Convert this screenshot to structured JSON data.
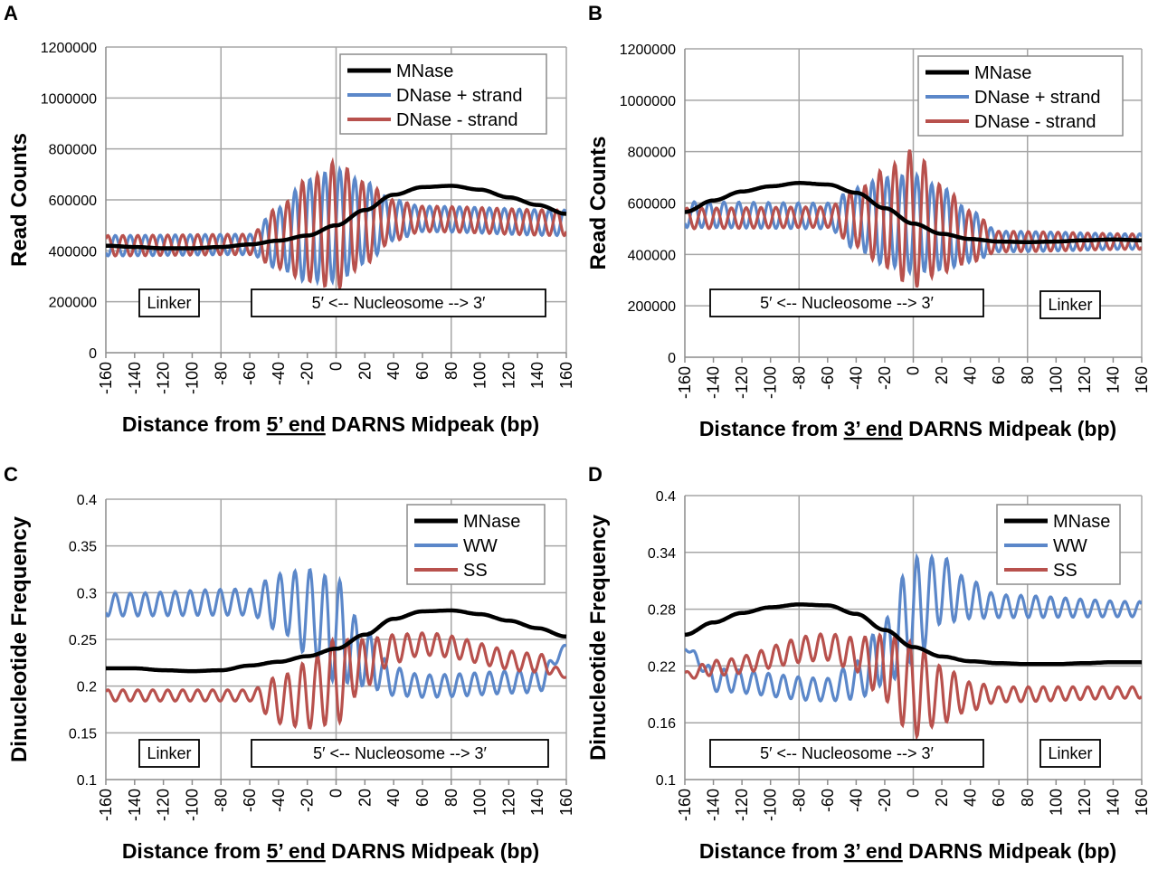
{
  "colors": {
    "mnase": "#000000",
    "dnase_plus": "#5b87c9",
    "dnase_minus": "#b8514d",
    "ww": "#5b87c9",
    "ss": "#b8514d",
    "grid": "#a6a6a6",
    "axis": "#8c8c8c"
  },
  "chart_data": [
    {
      "panel": "A",
      "type": "line",
      "ylabel": "Read Counts",
      "xlabel": {
        "pre": "Distance from ",
        "u": "5’ end",
        "post": " DARNS Midpeak (bp)"
      },
      "xlim": [
        -160,
        160
      ],
      "ylim": [
        0,
        1200000
      ],
      "xticks": [
        "-160",
        "-140",
        "-120",
        "-100",
        "-80",
        "-60",
        "-40",
        "-20",
        "0",
        "20",
        "40",
        "60",
        "80",
        "100",
        "120",
        "140",
        "160"
      ],
      "yticks": [
        "0",
        "200000",
        "400000",
        "600000",
        "800000",
        "1000000",
        "1200000"
      ],
      "legend": [
        "MNase",
        "DNase + strand",
        "DNase - strand"
      ],
      "boxes": [
        "Linker",
        "5′ <-- Nucleosome --> 3′"
      ],
      "mnase": {
        "x": [
          -160,
          -140,
          -120,
          -100,
          -80,
          -60,
          -40,
          -20,
          0,
          20,
          40,
          60,
          80,
          100,
          120,
          140,
          160
        ],
        "y": [
          420000,
          415000,
          410000,
          410000,
          415000,
          425000,
          440000,
          460000,
          500000,
          560000,
          620000,
          650000,
          655000,
          640000,
          610000,
          580000,
          545000
        ]
      },
      "dnase_plus": {
        "x": [
          -160,
          -60,
          -40,
          -20,
          0,
          20,
          40,
          60,
          160
        ],
        "amp": [
          40000,
          40000,
          120000,
          200000,
          220000,
          160000,
          80000,
          50000,
          50000
        ],
        "base": [
          420000,
          425000,
          450000,
          480000,
          500000,
          510000,
          520000,
          525000,
          510000
        ],
        "period": 10.4,
        "phase": 0
      },
      "dnase_minus": {
        "x": [
          -160,
          -60,
          -40,
          -20,
          0,
          20,
          40,
          60,
          160
        ],
        "amp": [
          40000,
          40000,
          120000,
          200000,
          250000,
          160000,
          80000,
          50000,
          50000
        ],
        "base": [
          420000,
          425000,
          450000,
          480000,
          500000,
          510000,
          520000,
          525000,
          510000
        ],
        "period": 10.4,
        "phase": 5.2
      }
    },
    {
      "panel": "B",
      "type": "line",
      "ylabel": "Read Counts",
      "xlabel": {
        "pre": "Distance from ",
        "u": "3’ end",
        "post": " DARNS Midpeak (bp)"
      },
      "xlim": [
        -160,
        160
      ],
      "ylim": [
        0,
        1200000
      ],
      "xticks": [
        "-160",
        "-140",
        "-120",
        "-100",
        "-80",
        "-60",
        "-40",
        "-20",
        "0",
        "20",
        "40",
        "60",
        "80",
        "100",
        "120",
        "140",
        "160"
      ],
      "yticks": [
        "0",
        "200000",
        "400000",
        "600000",
        "800000",
        "1000000",
        "1200000"
      ],
      "legend": [
        "MNase",
        "DNase + strand",
        "DNase - strand"
      ],
      "boxes": [
        "5′ <-- Nucleosome --> 3′",
        "Linker"
      ],
      "mnase": {
        "x": [
          -160,
          -140,
          -120,
          -100,
          -80,
          -60,
          -40,
          -20,
          0,
          20,
          40,
          60,
          80,
          100,
          120,
          140,
          160
        ],
        "y": [
          565000,
          610000,
          645000,
          665000,
          678000,
          672000,
          640000,
          580000,
          520000,
          480000,
          460000,
          450000,
          448000,
          450000,
          455000,
          458000,
          455000
        ]
      },
      "dnase_plus": {
        "x": [
          -160,
          -60,
          -40,
          -20,
          0,
          20,
          40,
          60,
          160
        ],
        "amp": [
          50000,
          50000,
          120000,
          170000,
          190000,
          160000,
          100000,
          40000,
          30000
        ],
        "base": [
          555000,
          550000,
          540000,
          530000,
          520000,
          500000,
          470000,
          450000,
          450000
        ],
        "period": 10.4,
        "phase": 0
      },
      "dnase_minus": {
        "x": [
          -160,
          -60,
          -40,
          -20,
          0,
          20,
          40,
          60,
          160
        ],
        "amp": [
          40000,
          40000,
          110000,
          190000,
          270000,
          170000,
          100000,
          40000,
          30000
        ],
        "base": [
          540000,
          545000,
          540000,
          540000,
          540000,
          500000,
          470000,
          450000,
          450000
        ],
        "period": 10.4,
        "phase": 5.2
      }
    },
    {
      "panel": "C",
      "type": "line",
      "ylabel": "Dinucleotide Frequency",
      "xlabel": {
        "pre": "Distance from ",
        "u": "5’ end",
        "post": " DARNS Midpeak (bp)"
      },
      "xlim": [
        -160,
        160
      ],
      "ylim": [
        0.1,
        0.4
      ],
      "xticks": [
        "-160",
        "-140",
        "-120",
        "-100",
        "-80",
        "-60",
        "-40",
        "-20",
        "0",
        "20",
        "40",
        "60",
        "80",
        "100",
        "120",
        "140",
        "160"
      ],
      "yticks": [
        "0.1",
        "0.15",
        "0.2",
        "0.25",
        "0.3",
        "0.35",
        "0.4"
      ],
      "legend": [
        "MNase",
        "WW",
        "SS"
      ],
      "boxes": [
        "Linker",
        "5′ <-- Nucleosome --> 3′"
      ],
      "mnase": {
        "x": [
          -160,
          -140,
          -120,
          -100,
          -80,
          -60,
          -40,
          -20,
          0,
          20,
          40,
          60,
          80,
          100,
          120,
          140,
          160
        ],
        "y": [
          0.219,
          0.219,
          0.217,
          0.216,
          0.217,
          0.222,
          0.226,
          0.232,
          0.24,
          0.255,
          0.272,
          0.28,
          0.281,
          0.277,
          0.27,
          0.262,
          0.253
        ]
      },
      "ww": {
        "x": [
          -160,
          -60,
          -40,
          -20,
          0,
          20,
          40,
          60,
          140,
          160
        ],
        "amp": [
          0.012,
          0.014,
          0.03,
          0.045,
          0.055,
          0.03,
          0.015,
          0.012,
          0.012,
          0.004
        ],
        "base": [
          0.287,
          0.29,
          0.29,
          0.28,
          0.26,
          0.23,
          0.205,
          0.2,
          0.205,
          0.24
        ],
        "period": 10.4,
        "phase": 0
      },
      "ss": {
        "x": [
          -160,
          -60,
          -40,
          -20,
          0,
          20,
          40,
          60,
          140,
          160
        ],
        "amp": [
          0.006,
          0.006,
          0.025,
          0.035,
          0.045,
          0.025,
          0.015,
          0.012,
          0.01,
          0.003
        ],
        "base": [
          0.19,
          0.19,
          0.185,
          0.19,
          0.205,
          0.225,
          0.24,
          0.245,
          0.225,
          0.212
        ],
        "period": 10.4,
        "phase": 5.2
      }
    },
    {
      "panel": "D",
      "type": "line",
      "ylabel": "Dinucleotide Frequency",
      "xlabel": {
        "pre": "Distance from ",
        "u": "3’ end",
        "post": " DARNS Midpeak (bp)"
      },
      "xlim": [
        -160,
        160
      ],
      "ylim": [
        0.1,
        0.4
      ],
      "xticks": [
        "-160",
        "-140",
        "-120",
        "-100",
        "-80",
        "-60",
        "-40",
        "-20",
        "0",
        "20",
        "40",
        "60",
        "80",
        "100",
        "120",
        "140",
        "160"
      ],
      "yticks": [
        "0.1",
        "0.16",
        "0.22",
        "0.28",
        "0.34",
        "0.4"
      ],
      "legend": [
        "MNase",
        "WW",
        "SS"
      ],
      "boxes": [
        "5′ <-- Nucleosome --> 3′",
        "Linker"
      ],
      "mnase": {
        "x": [
          -160,
          -140,
          -120,
          -100,
          -80,
          -60,
          -40,
          -20,
          0,
          20,
          40,
          60,
          80,
          100,
          120,
          140,
          160
        ],
        "y": [
          0.253,
          0.266,
          0.276,
          0.282,
          0.285,
          0.284,
          0.275,
          0.258,
          0.24,
          0.23,
          0.225,
          0.223,
          0.222,
          0.222,
          0.223,
          0.224,
          0.224
        ]
      },
      "ww": {
        "x": [
          -160,
          -150,
          -140,
          -60,
          -40,
          -20,
          0,
          20,
          40,
          60,
          160
        ],
        "amp": [
          0.003,
          0.008,
          0.012,
          0.012,
          0.02,
          0.035,
          0.055,
          0.035,
          0.02,
          0.012,
          0.008
        ],
        "base": [
          0.24,
          0.225,
          0.205,
          0.195,
          0.205,
          0.235,
          0.28,
          0.3,
          0.29,
          0.283,
          0.28
        ],
        "period": 10.4,
        "phase": 0
      },
      "ss": {
        "x": [
          -160,
          -140,
          -60,
          -40,
          -20,
          0,
          20,
          40,
          60,
          160
        ],
        "amp": [
          0.004,
          0.008,
          0.014,
          0.018,
          0.035,
          0.05,
          0.03,
          0.015,
          0.008,
          0.006
        ],
        "base": [
          0.21,
          0.218,
          0.24,
          0.232,
          0.218,
          0.195,
          0.19,
          0.188,
          0.19,
          0.192
        ],
        "period": 10.4,
        "phase": 5.2
      }
    }
  ]
}
